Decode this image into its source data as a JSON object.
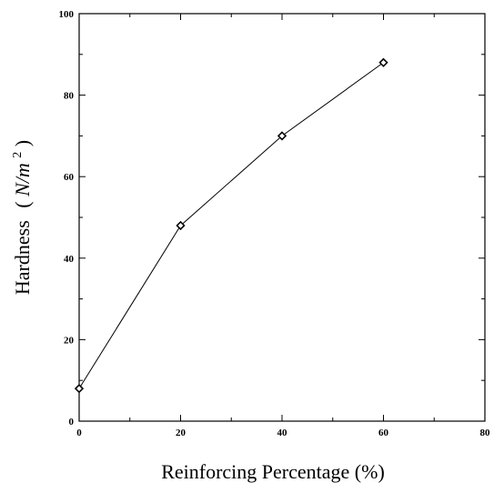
{
  "chart_data": {
    "type": "line",
    "xlabel": "Reinforcing Percentage (%)",
    "ylabel": {
      "main": "Hardness",
      "unit_open": "(",
      "unit_var": "N/m",
      "unit_sup": "2",
      "unit_close": ")"
    },
    "xlim": [
      0,
      80
    ],
    "ylim": [
      0,
      100
    ],
    "x_ticks": [
      0,
      20,
      40,
      60,
      80
    ],
    "y_ticks": [
      0,
      20,
      40,
      60,
      80,
      100
    ],
    "x_tick_labels": [
      "0",
      "20",
      "40",
      "60",
      "80"
    ],
    "y_tick_labels": [
      "0",
      "20",
      "40",
      "60",
      "80",
      "100"
    ],
    "grid": false,
    "series": [
      {
        "marker": "diamond",
        "color": "#000000",
        "x": [
          0,
          20,
          40,
          60
        ],
        "y": [
          8,
          48,
          70,
          88
        ]
      }
    ]
  }
}
